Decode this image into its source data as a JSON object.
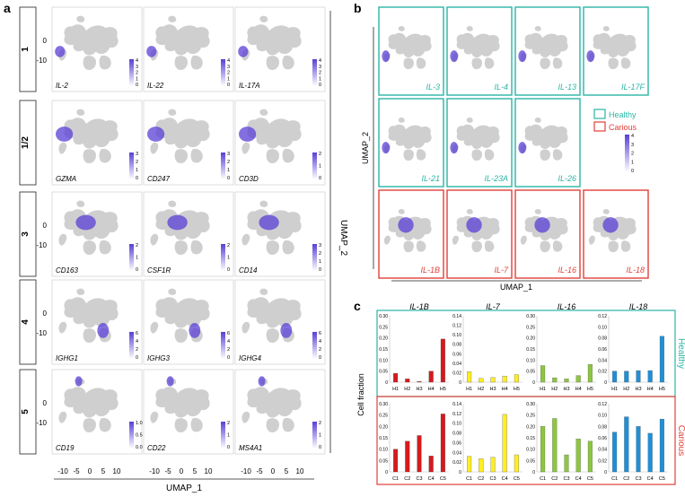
{
  "panel_a": {
    "letter": "a",
    "rows": [
      {
        "label": "1",
        "genes": [
          "IL-2",
          "IL-22",
          "IL-17A"
        ],
        "scales": [
          [
            "4",
            "3",
            "2",
            "1",
            "0"
          ],
          [
            "4",
            "3",
            "2",
            "1",
            "0"
          ],
          [
            "4",
            "3",
            "2",
            "1",
            "0"
          ]
        ],
        "axis_ticks": [
          "0",
          "-10"
        ],
        "region": "left-bottom"
      },
      {
        "label": "1/2",
        "genes": [
          "GZMA",
          "CD247",
          "CD3D"
        ],
        "scales": [
          [
            "3",
            "2",
            "1",
            "0"
          ],
          [
            "3",
            "2",
            "1",
            "0"
          ],
          [
            "2",
            "1",
            "0"
          ]
        ],
        "axis_ticks": [],
        "region": "left-mid"
      },
      {
        "label": "3",
        "genes": [
          "CD163",
          "CSF1R",
          "CD14"
        ],
        "scales": [
          [
            "2",
            "1",
            "0"
          ],
          [
            "2",
            "1",
            "0"
          ],
          [
            "3",
            "2",
            "1",
            "0"
          ]
        ],
        "axis_ticks": [
          "0",
          "-10"
        ],
        "region": "center"
      },
      {
        "label": "4",
        "genes": [
          "IGHG1",
          "IGHG3",
          "IGHG4"
        ],
        "scales": [
          [
            "6",
            "4",
            "2",
            "0"
          ],
          [
            "6",
            "4",
            "2",
            "0"
          ],
          [
            "6",
            "4",
            "2",
            "0"
          ]
        ],
        "axis_ticks": [
          "0",
          "-10"
        ],
        "region": "right-lower"
      },
      {
        "label": "5",
        "genes": [
          "CD19",
          "CD22",
          "MS4A1"
        ],
        "scales": [
          [
            "1.0",
            "0.5",
            "0.0"
          ],
          [
            "2",
            "1",
            "0"
          ],
          [
            "2",
            "1",
            "0"
          ]
        ],
        "axis_ticks": [
          "0",
          "-10"
        ],
        "region": "top"
      }
    ],
    "x_ticks": [
      "-10",
      "-5",
      "0",
      "5",
      "10"
    ],
    "xlabel": "UMAP_1",
    "ylabel": "UMAP_2"
  },
  "panel_b": {
    "letter": "b",
    "healthy_genes": [
      "IL-3",
      "IL-4",
      "IL-13",
      "IL-17F",
      "IL-21",
      "IL-23A",
      "IL-26"
    ],
    "carious_genes": [
      "IL-1B",
      "IL-7",
      "IL-16",
      "IL-18"
    ],
    "legend": {
      "healthy": "Healthy",
      "carious": "Carious"
    },
    "scale": [
      "4",
      "3",
      "2",
      "1",
      "0"
    ],
    "xlabel": "UMAP_1",
    "ylabel": "UMAP_2"
  },
  "panel_c": {
    "letter": "c",
    "ylabel": "Cell fraction",
    "group_labels": {
      "healthy": "Healthy",
      "carious": "Carious"
    }
  },
  "colors": {
    "healthy": "#2ab5a5",
    "carious": "#e0403a",
    "umap_gray": "#cfcfcf",
    "expr": "#5a3fd6"
  },
  "chart_data": [
    {
      "type": "bar",
      "title": "IL-1B",
      "group": "Healthy",
      "categories": [
        "H1",
        "H2",
        "H3",
        "H4",
        "H5"
      ],
      "values": [
        0.04,
        0.015,
        0.002,
        0.05,
        0.195
      ],
      "ylim": [
        0,
        0.3
      ],
      "ticks": [
        "0",
        "0.05",
        "0.10",
        "0.15",
        "0.20",
        "0.25",
        "0.30"
      ],
      "color": "#d7191c"
    },
    {
      "type": "bar",
      "title": "IL-7",
      "group": "Healthy",
      "categories": [
        "H1",
        "H2",
        "H3",
        "H4",
        "H5"
      ],
      "values": [
        0.022,
        0.008,
        0.01,
        0.013,
        0.016
      ],
      "ylim": [
        0,
        0.14
      ],
      "ticks": [
        "0",
        "0.02",
        "0.04",
        "0.06",
        "0.08",
        "0.10",
        "0.12",
        "0.14"
      ],
      "color": "#ffee22"
    },
    {
      "type": "bar",
      "title": "IL-16",
      "group": "Healthy",
      "categories": [
        "H1",
        "H2",
        "H3",
        "H4",
        "H5"
      ],
      "values": [
        0.075,
        0.02,
        0.015,
        0.03,
        0.08
      ],
      "ylim": [
        0,
        0.3
      ],
      "ticks": [
        "0",
        "0.05",
        "0.10",
        "0.15",
        "0.20",
        "0.25",
        "0.30"
      ],
      "color": "#8dc63f"
    },
    {
      "type": "bar",
      "title": "IL-18",
      "group": "Healthy",
      "categories": [
        "H1",
        "H2",
        "H3",
        "H4",
        "H5"
      ],
      "values": [
        0.02,
        0.02,
        0.021,
        0.021,
        0.083
      ],
      "ylim": [
        0,
        0.12
      ],
      "ticks": [
        "0",
        "0.02",
        "0.04",
        "0.06",
        "0.08",
        "0.10",
        "0.12"
      ],
      "color": "#1f8fd6"
    },
    {
      "type": "bar",
      "title": "",
      "group": "Carious",
      "categories": [
        "C1",
        "C2",
        "C3",
        "C4",
        "C5"
      ],
      "values": [
        0.1,
        0.135,
        0.16,
        0.07,
        0.255
      ],
      "ylim": [
        0,
        0.3
      ],
      "ticks": [
        "0",
        "0.05",
        "0.10",
        "0.15",
        "0.20",
        "0.25",
        "0.30"
      ],
      "color": "#d7191c"
    },
    {
      "type": "bar",
      "title": "",
      "group": "Carious",
      "categories": [
        "C1",
        "C2",
        "C3",
        "C4",
        "C5"
      ],
      "values": [
        0.032,
        0.027,
        0.03,
        0.118,
        0.035
      ],
      "ylim": [
        0,
        0.14
      ],
      "ticks": [
        "0",
        "0.02",
        "0.04",
        "0.06",
        "0.08",
        "0.10",
        "0.12",
        "0.14"
      ],
      "color": "#ffee22"
    },
    {
      "type": "bar",
      "title": "",
      "group": "Carious",
      "categories": [
        "C1",
        "C2",
        "C3",
        "C4",
        "C5"
      ],
      "values": [
        0.2,
        0.235,
        0.075,
        0.145,
        0.135
      ],
      "ylim": [
        0,
        0.3
      ],
      "ticks": [
        "0",
        "0.05",
        "0.10",
        "0.15",
        "0.20",
        "0.25",
        "0.30"
      ],
      "color": "#8dc63f"
    },
    {
      "type": "bar",
      "title": "",
      "group": "Carious",
      "categories": [
        "C1",
        "C2",
        "C3",
        "C4",
        "C5"
      ],
      "values": [
        0.07,
        0.097,
        0.08,
        0.068,
        0.093
      ],
      "ylim": [
        0,
        0.12
      ],
      "ticks": [
        "0",
        "0.02",
        "0.04",
        "0.06",
        "0.08",
        "0.10",
        "0.12"
      ],
      "color": "#1f8fd6"
    }
  ]
}
